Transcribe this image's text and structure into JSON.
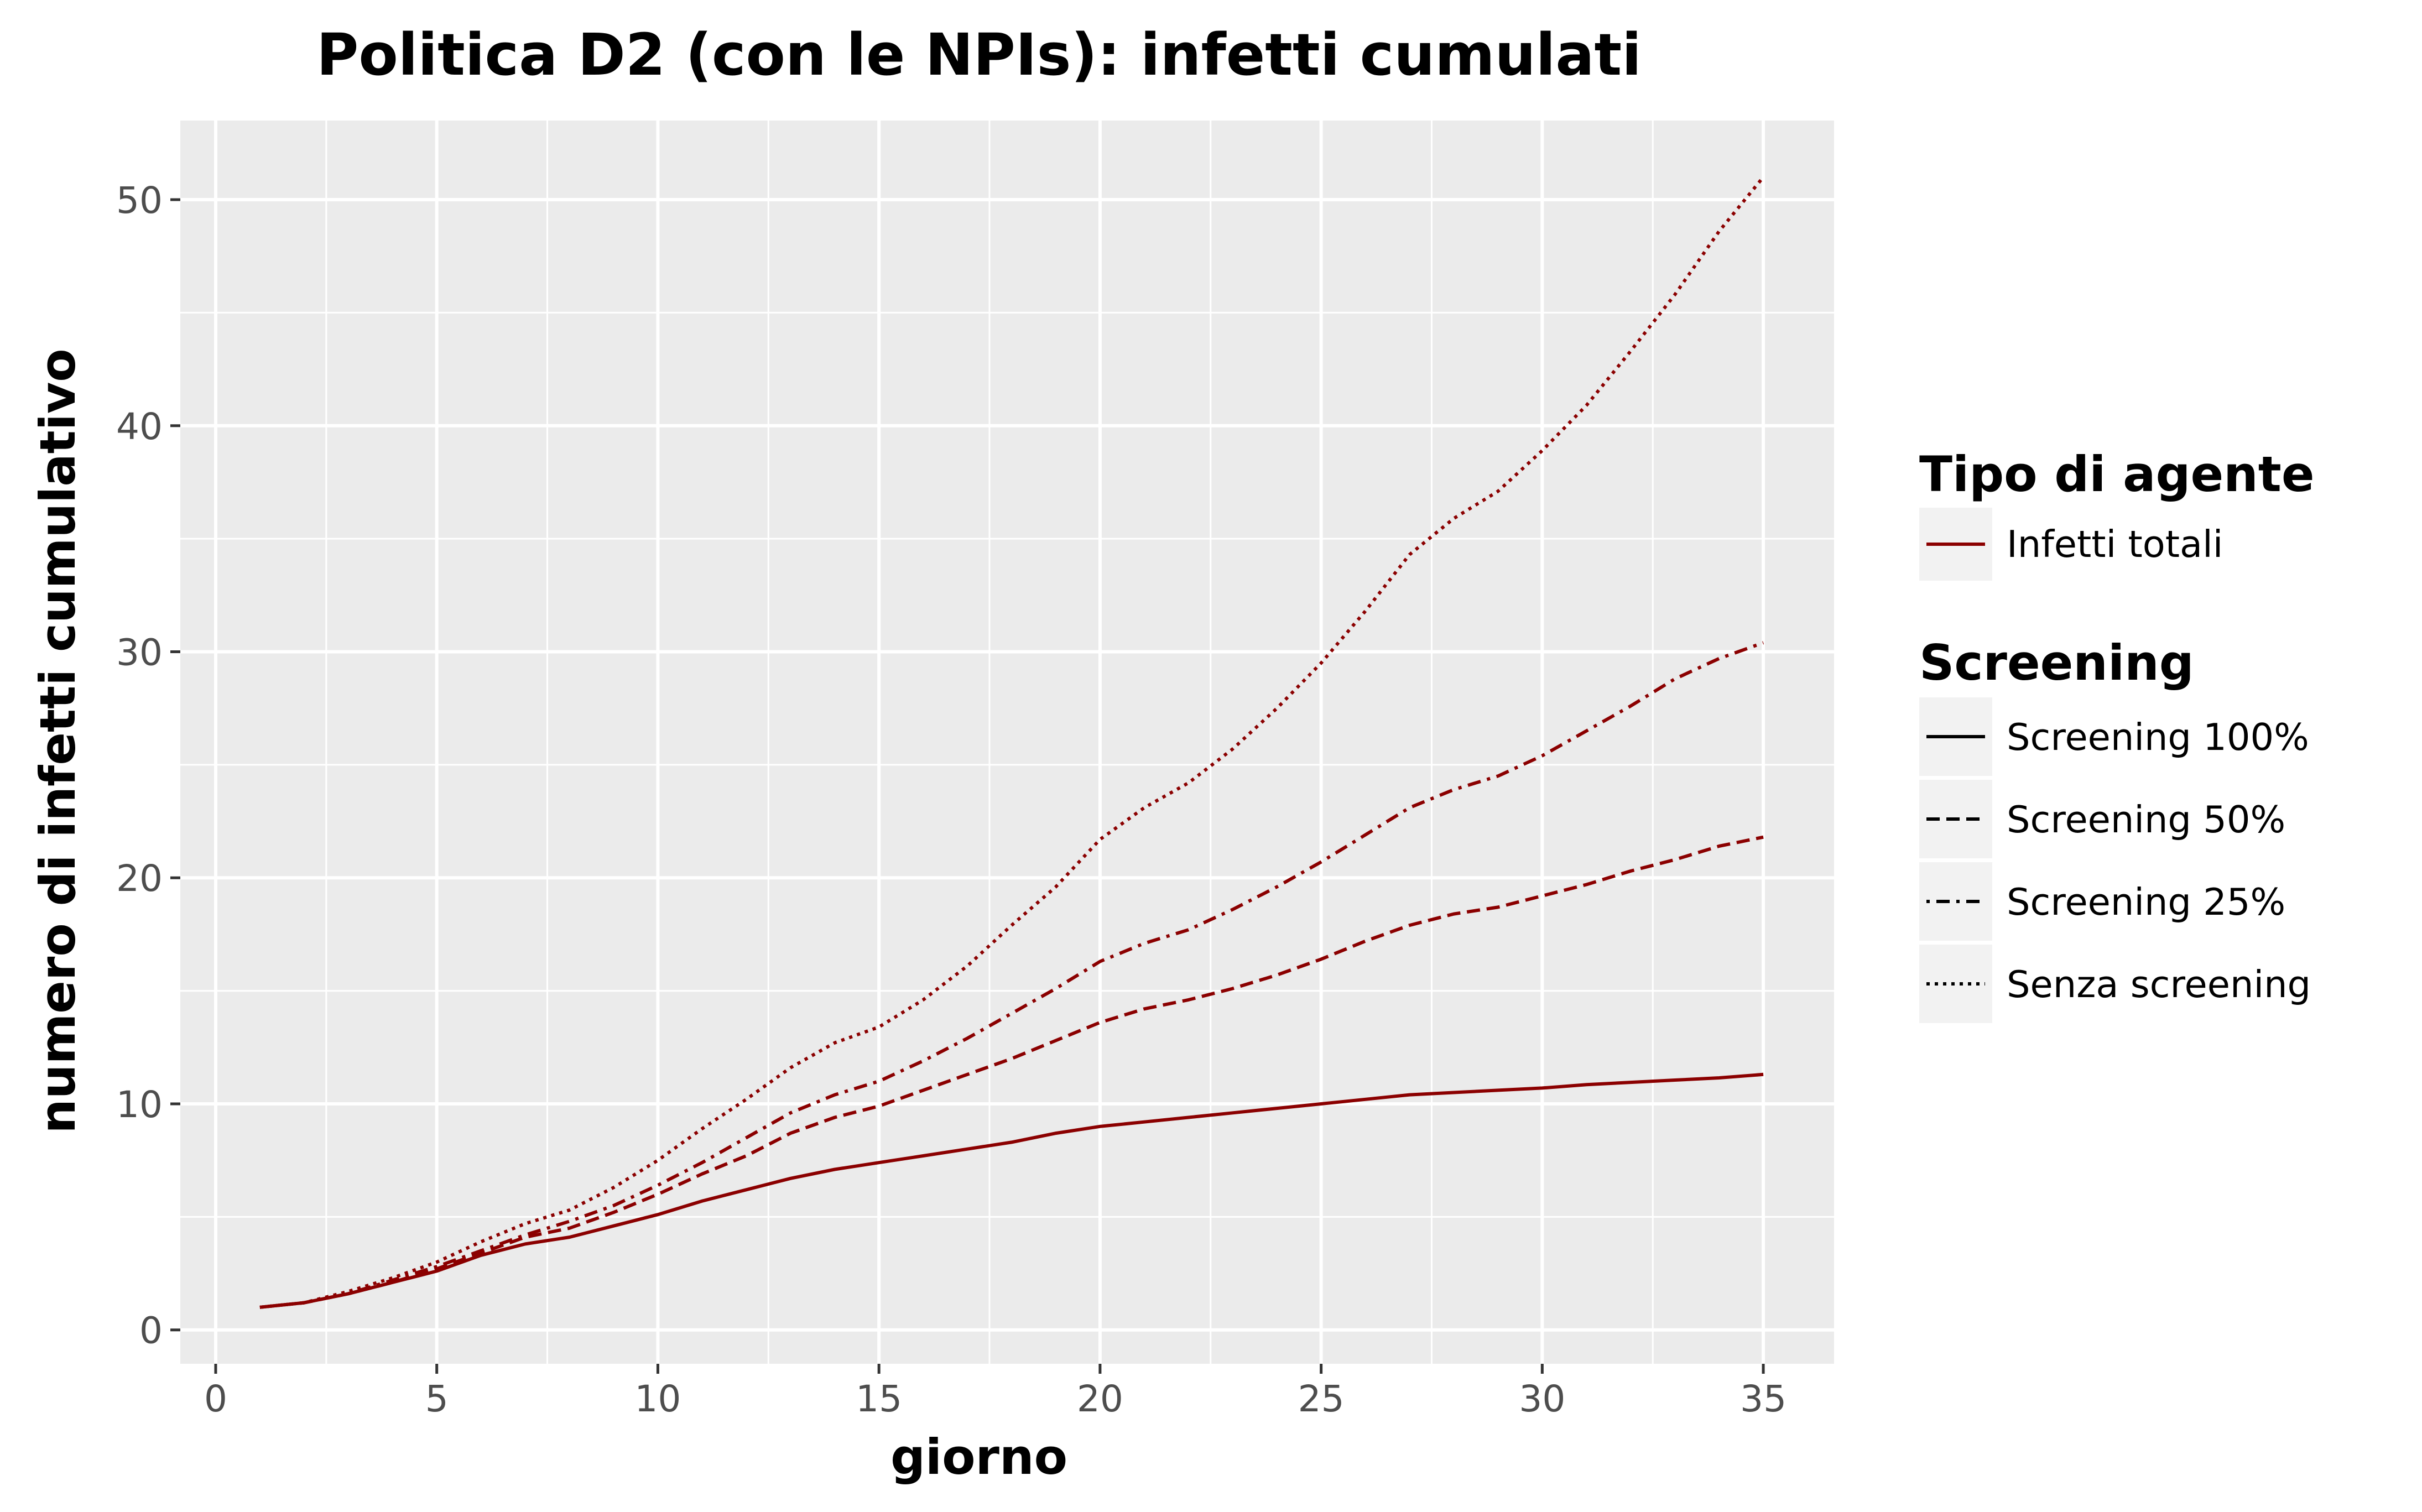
{
  "chart_data": {
    "type": "line",
    "title": "Politica D2 (con le NPIs): infetti cumulati",
    "xlabel": "giorno",
    "ylabel": "numero di infetti cumulativo",
    "xlim": [
      -0.8,
      36.6
    ],
    "ylim": [
      -1.5,
      53.5
    ],
    "xticks": [
      0,
      5,
      10,
      15,
      20,
      25,
      30,
      35
    ],
    "yticks": [
      0,
      10,
      20,
      30,
      40,
      50
    ],
    "xtick_labels": [
      "0",
      "5",
      "10",
      "15",
      "20",
      "25",
      "30",
      "35"
    ],
    "ytick_labels": [
      "0",
      "10",
      "20",
      "30",
      "40",
      "50"
    ],
    "grid": true,
    "legend_placement": "right",
    "panel_color": "#ebebeb",
    "line_color": "#8b0000",
    "x": [
      1,
      2,
      3,
      4,
      5,
      6,
      7,
      8,
      9,
      10,
      11,
      12,
      13,
      14,
      15,
      16,
      17,
      18,
      19,
      20,
      21,
      22,
      23,
      24,
      25,
      26,
      27,
      28,
      29,
      30,
      31,
      32,
      33,
      34,
      35
    ],
    "series": [
      {
        "name": "Screening 100%",
        "dash": "solid",
        "values": [
          1.0,
          1.2,
          1.6,
          2.1,
          2.6,
          3.3,
          3.8,
          4.1,
          4.6,
          5.1,
          5.7,
          6.2,
          6.7,
          7.1,
          7.4,
          7.7,
          8.0,
          8.3,
          8.7,
          9.0,
          9.2,
          9.4,
          9.6,
          9.8,
          10.0,
          10.2,
          10.4,
          10.5,
          10.6,
          10.7,
          10.85,
          10.95,
          11.05,
          11.15,
          11.3
        ]
      },
      {
        "name": "Screening 50%",
        "dash": "dashed",
        "values": [
          1.0,
          1.2,
          1.6,
          2.1,
          2.7,
          3.4,
          4.1,
          4.5,
          5.2,
          6.0,
          6.9,
          7.7,
          8.7,
          9.4,
          9.9,
          10.6,
          11.3,
          12.0,
          12.8,
          13.6,
          14.2,
          14.6,
          15.1,
          15.7,
          16.4,
          17.2,
          17.9,
          18.4,
          18.7,
          19.2,
          19.7,
          20.3,
          20.8,
          21.4,
          21.8
        ]
      },
      {
        "name": "Screening 25%",
        "dash": "dashdot",
        "values": [
          1.0,
          1.2,
          1.6,
          2.2,
          2.8,
          3.5,
          4.2,
          4.8,
          5.5,
          6.4,
          7.4,
          8.5,
          9.6,
          10.4,
          11.0,
          11.9,
          12.9,
          14.0,
          15.1,
          16.3,
          17.1,
          17.7,
          18.6,
          19.6,
          20.7,
          21.9,
          23.1,
          23.9,
          24.5,
          25.4,
          26.5,
          27.6,
          28.8,
          29.7,
          30.4
        ]
      },
      {
        "name": "Senza screening",
        "dash": "dotted",
        "values": [
          1.0,
          1.2,
          1.7,
          2.3,
          3.0,
          3.9,
          4.7,
          5.3,
          6.3,
          7.5,
          8.9,
          10.2,
          11.6,
          12.7,
          13.4,
          14.6,
          16.1,
          17.9,
          19.6,
          21.7,
          23.1,
          24.2,
          25.7,
          27.5,
          29.5,
          31.8,
          34.3,
          35.9,
          37.1,
          38.9,
          40.9,
          43.3,
          45.8,
          48.6,
          51.0
        ]
      }
    ]
  },
  "legend": {
    "color_title": "Tipo di agente",
    "color_item": "Infetti totali",
    "linetype_title": "Screening",
    "linetype_items": [
      "Screening 100%",
      "Screening 50%",
      "Screening 25%",
      "Senza screening"
    ]
  }
}
